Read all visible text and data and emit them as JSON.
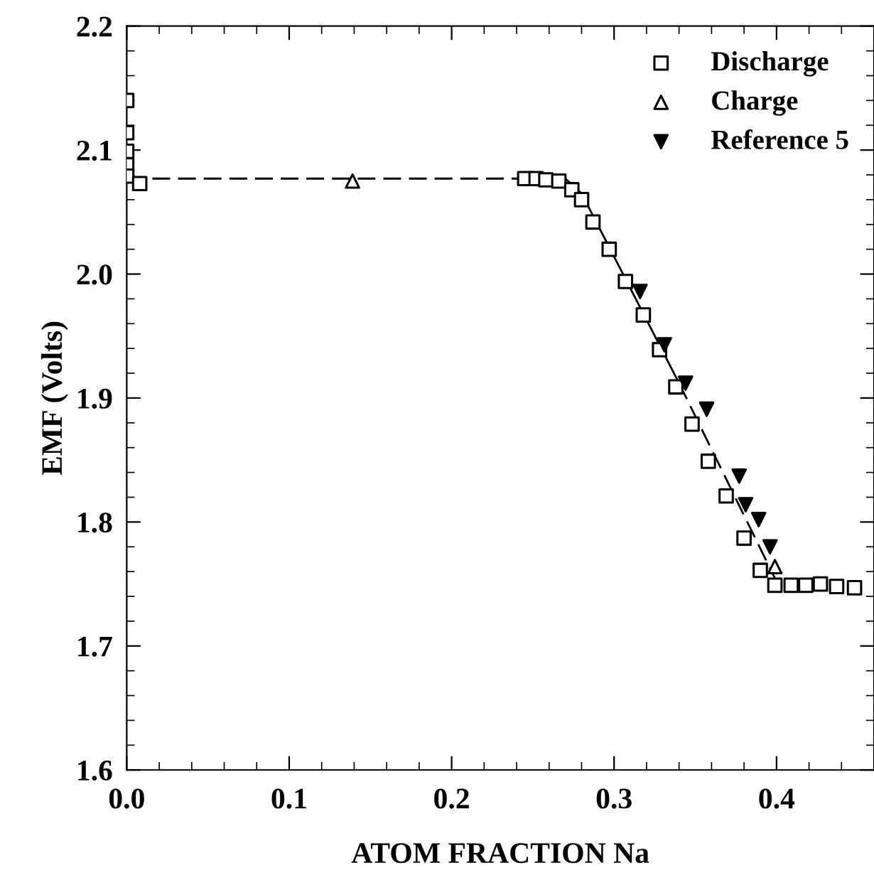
{
  "chart_data": {
    "type": "scatter",
    "xlabel": "ATOM FRACTION Na",
    "ylabel": "EMF (Volts)",
    "xlim": [
      0.0,
      0.46
    ],
    "ylim": [
      1.6,
      2.2
    ],
    "xticks": [
      {
        "value": 0.0,
        "label": "0.0"
      },
      0.1,
      0.2,
      0.3,
      0.4
    ],
    "yticks": [
      1.6,
      1.7,
      1.8,
      1.9,
      {
        "value": 2.0,
        "label": "2.0"
      },
      2.1,
      2.2
    ],
    "grid": false,
    "legend": "top right",
    "series": [
      {
        "name": "Discharge",
        "marker": "square",
        "color": "#000000",
        "x": [
          0.0,
          0.0,
          0.0,
          0.0,
          0.0,
          0.008,
          0.245,
          0.252,
          0.258,
          0.266,
          0.274,
          0.28,
          0.287,
          0.297,
          0.307,
          0.318,
          0.328,
          0.338,
          0.348,
          0.358,
          0.369,
          0.38,
          0.39,
          0.399,
          0.409,
          0.418,
          0.427,
          0.437,
          0.448
        ],
        "values": [
          2.14,
          2.114,
          2.099,
          2.088,
          2.079,
          2.073,
          2.077,
          2.077,
          2.076,
          2.075,
          2.068,
          2.06,
          2.042,
          2.02,
          1.994,
          1.967,
          1.939,
          1.909,
          1.879,
          1.849,
          1.821,
          1.787,
          1.761,
          1.749,
          1.749,
          1.749,
          1.75,
          1.748,
          1.747
        ]
      },
      {
        "name": "Charge",
        "marker": "triangle",
        "color": "#000000",
        "x": [
          0.139,
          0.399
        ],
        "values": [
          2.075,
          1.764
        ]
      },
      {
        "name": "Reference 5",
        "marker": "triangle_down",
        "color": "#000000",
        "x": [
          0.316,
          0.331,
          0.344,
          0.357,
          0.377,
          0.381,
          0.389,
          0.396
        ],
        "values": [
          1.986,
          1.943,
          1.912,
          1.891,
          1.837,
          1.814,
          1.802,
          1.78
        ]
      },
      {
        "type": "line",
        "line_style": "dashed",
        "color": "#000000",
        "x": [
          0.0,
          0.27
        ],
        "values": [
          2.077,
          2.077
        ]
      },
      {
        "type": "line",
        "line_style": "solid",
        "color": "#000000",
        "x": [
          0.27,
          0.28,
          0.34
        ],
        "values": [
          2.077,
          2.065,
          1.912
        ]
      },
      {
        "type": "line",
        "line_style": "dashed",
        "color": "#000000",
        "x": [
          0.34,
          0.4
        ],
        "values": [
          1.912,
          1.752
        ]
      }
    ]
  }
}
